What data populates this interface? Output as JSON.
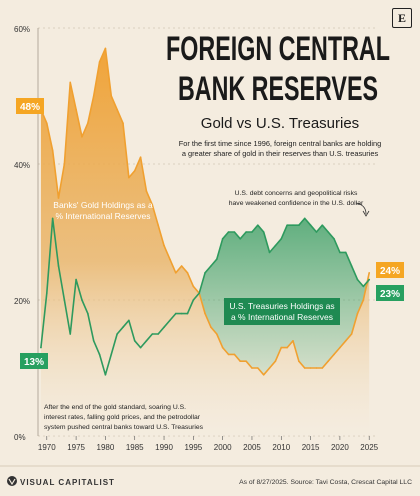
{
  "header": {
    "title_line1": "FOREIGN CENTRAL",
    "title_line2": "BANK RESERVES",
    "subtitle": "Gold vs U.S. Treasuries",
    "description_line1": "For the first time since 1996, foreign central banks are holding",
    "description_line2": "a greater share of gold in their reserves than U.S. treasuries"
  },
  "annotations": {
    "gold_series_line1": "Banks' Gold Holdings as a",
    "gold_series_line2": "% International Reserves",
    "treasury_series_line1": "U.S. Treasuries Holdings as",
    "treasury_series_line2": "a % International Reserves",
    "debt_note_line1": "U.S. debt concerns and geopolitical risks",
    "debt_note_line2": "have weakened confidence in the U.S. dollar",
    "history_note_line1": "After the end of the gold standard, soaring U.S.",
    "history_note_line2": "interest rates, falling gold prices, and the petrodollar",
    "history_note_line3": "system pushed central banks toward U.S. Treasuries",
    "gold_start_label": "48%",
    "treasury_start_label": "13%",
    "gold_end_label": "24%",
    "treasury_end_label": "23%"
  },
  "footer": {
    "brand": "VISUAL CAPITALIST",
    "source": "As of 8/27/2025. Source: Tavi Costa, Crescat Capital LLC",
    "logo_letter": "E"
  },
  "colors": {
    "gold": "#f0a030",
    "treasury": "#2e9a5e",
    "label_gold_bg": "#f5a623",
    "label_treasury_bg": "#27a060",
    "title": "#1a1a1a",
    "background": "#f4ecdf"
  },
  "chart_data": {
    "type": "area",
    "title": "FOREIGN CENTRAL BANK RESERVES",
    "subtitle": "Gold vs U.S. Treasuries",
    "xlabel": "",
    "ylabel": "",
    "xlim": [
      1968.5,
      2026.5
    ],
    "ylim": [
      0,
      60
    ],
    "x_ticks": [
      1970,
      1975,
      1980,
      1985,
      1990,
      1995,
      2000,
      2005,
      2010,
      2015,
      2020,
      2025
    ],
    "y_ticks": [
      0,
      20,
      40,
      60
    ],
    "y_tick_labels": [
      "0%",
      "20%",
      "40%",
      "60%"
    ],
    "grid": false,
    "series": [
      {
        "name": "Banks' Gold Holdings as a % International Reserves",
        "x": [
          1969,
          1970,
          1971,
          1972,
          1973,
          1974,
          1975,
          1976,
          1977,
          1978,
          1979,
          1980,
          1981,
          1982,
          1983,
          1984,
          1985,
          1986,
          1987,
          1988,
          1989,
          1990,
          1991,
          1992,
          1993,
          1994,
          1995,
          1996,
          1997,
          1998,
          1999,
          2000,
          2001,
          2002,
          2003,
          2004,
          2005,
          2006,
          2007,
          2008,
          2009,
          2010,
          2011,
          2012,
          2013,
          2014,
          2015,
          2016,
          2017,
          2018,
          2019,
          2020,
          2021,
          2022,
          2023,
          2024,
          2025
        ],
        "values": [
          48,
          46,
          42,
          35,
          40,
          52,
          48,
          44,
          46,
          50,
          55,
          57,
          50,
          48,
          46,
          38,
          39,
          41,
          36,
          34,
          31,
          28,
          26,
          24,
          25,
          24,
          22,
          21,
          18,
          16,
          15,
          13,
          12,
          12,
          11,
          11,
          10,
          10,
          9,
          10,
          11,
          13,
          13,
          14,
          11,
          10,
          10,
          10,
          10,
          11,
          12,
          13,
          14,
          15,
          18,
          20,
          24
        ]
      },
      {
        "name": "U.S. Treasuries Holdings as a % International Reserves",
        "x": [
          1969,
          1970,
          1971,
          1972,
          1973,
          1974,
          1975,
          1976,
          1977,
          1978,
          1979,
          1980,
          1981,
          1982,
          1983,
          1984,
          1985,
          1986,
          1987,
          1988,
          1989,
          1990,
          1991,
          1992,
          1993,
          1994,
          1995,
          1996,
          1997,
          1998,
          1999,
          2000,
          2001,
          2002,
          2003,
          2004,
          2005,
          2006,
          2007,
          2008,
          2009,
          2010,
          2011,
          2012,
          2013,
          2014,
          2015,
          2016,
          2017,
          2018,
          2019,
          2020,
          2021,
          2022,
          2023,
          2024,
          2025
        ],
        "values": [
          13,
          21,
          32,
          25,
          20,
          15,
          23,
          20,
          18,
          14,
          12,
          9,
          12,
          15,
          16,
          17,
          14,
          13,
          14,
          15,
          15,
          16,
          17,
          18,
          18,
          18,
          20,
          21,
          24,
          25,
          26,
          29,
          30,
          30,
          29,
          30,
          30,
          31,
          30,
          27,
          28,
          29,
          31,
          31,
          31,
          32,
          31,
          30,
          31,
          30,
          29,
          27,
          27,
          25,
          23,
          22,
          23
        ]
      }
    ]
  }
}
